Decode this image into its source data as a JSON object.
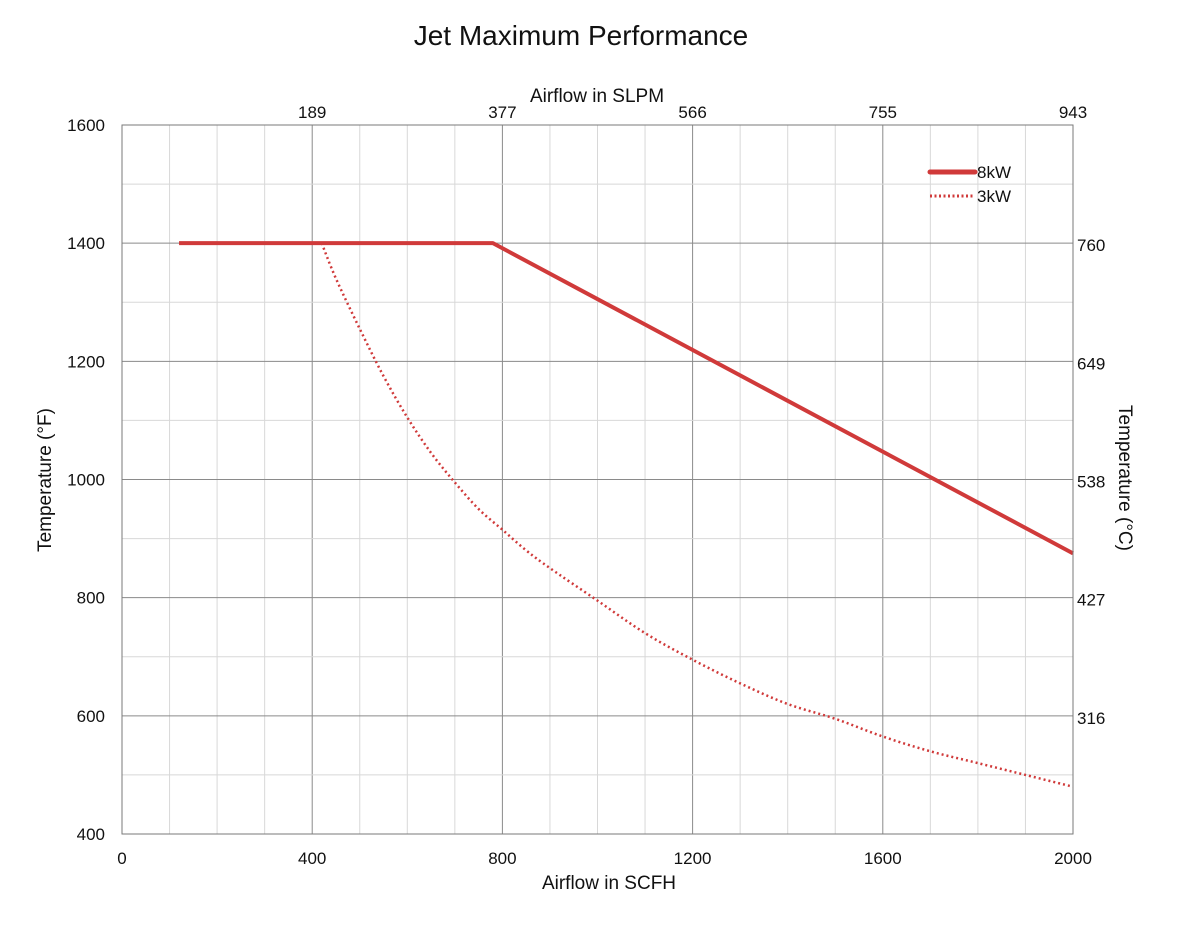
{
  "chart_data": {
    "type": "line",
    "title": "Jet Maximum Performance",
    "xlabel": "Airflow in SCFH",
    "ylabel": "Temperature (°F)",
    "x2label": "Airflow in SLPM",
    "y2label": "Temperature (°C)",
    "xlim": [
      0,
      2000
    ],
    "ylim": [
      400,
      1600
    ],
    "x_ticks": [
      0,
      400,
      800,
      1200,
      1600,
      2000
    ],
    "x_minor_step": 100,
    "y_ticks": [
      400,
      600,
      800,
      1000,
      1200,
      1400,
      1600
    ],
    "y_minor_step": 100,
    "x2_ticks": [
      {
        "at": 400,
        "label": "189"
      },
      {
        "at": 800,
        "label": "377"
      },
      {
        "at": 1200,
        "label": "566"
      },
      {
        "at": 1600,
        "label": "755"
      },
      {
        "at": 2000,
        "label": "943"
      }
    ],
    "y2_ticks": [
      {
        "at": 600,
        "label": "316"
      },
      {
        "at": 800,
        "label": "427"
      },
      {
        "at": 1000,
        "label": "538"
      },
      {
        "at": 1200,
        "label": "649"
      },
      {
        "at": 1400,
        "label": "760"
      }
    ],
    "grid": true,
    "legend_position": "top-right",
    "series": [
      {
        "name": "8kW",
        "style": "solid",
        "color": "#d03a3a",
        "points": [
          [
            120,
            1400
          ],
          [
            780,
            1400
          ],
          [
            2000,
            875
          ]
        ]
      },
      {
        "name": "3kW",
        "style": "dotted",
        "color": "#d03a3a",
        "points": [
          [
            420,
            1400
          ],
          [
            450,
            1340
          ],
          [
            500,
            1255
          ],
          [
            550,
            1175
          ],
          [
            600,
            1105
          ],
          [
            650,
            1045
          ],
          [
            700,
            995
          ],
          [
            750,
            950
          ],
          [
            800,
            915
          ],
          [
            850,
            880
          ],
          [
            900,
            850
          ],
          [
            1000,
            795
          ],
          [
            1100,
            740
          ],
          [
            1200,
            695
          ],
          [
            1300,
            655
          ],
          [
            1400,
            620
          ],
          [
            1500,
            595
          ],
          [
            1600,
            565
          ],
          [
            1700,
            540
          ],
          [
            1800,
            520
          ],
          [
            1900,
            500
          ],
          [
            2000,
            480
          ]
        ]
      }
    ]
  }
}
